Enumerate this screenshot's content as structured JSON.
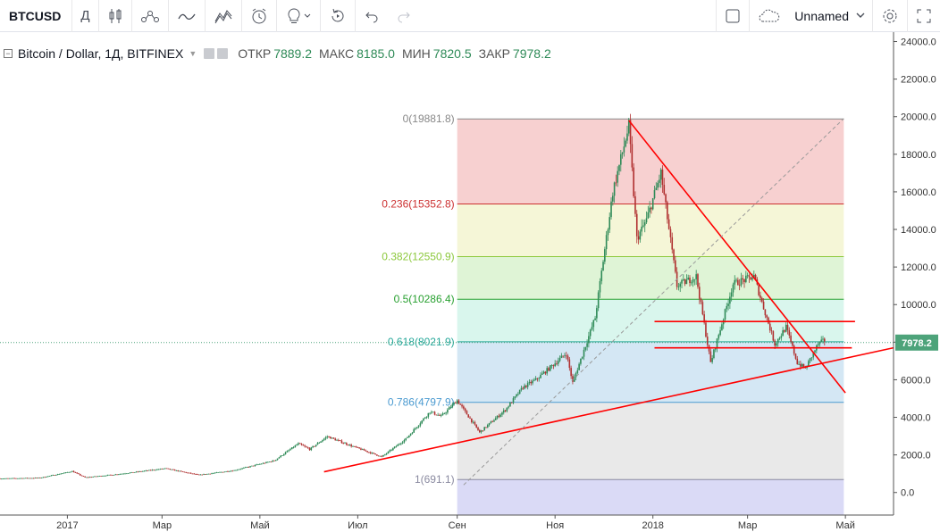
{
  "toolbar": {
    "symbol": "BTCUSD",
    "interval": "Д",
    "layout_name": "Unnamed",
    "icons": [
      "candles-icon",
      "indicators-icon",
      "compare-icon",
      "strategy-icon",
      "alert-icon",
      "idea-icon",
      "replay-icon",
      "undo-icon",
      "redo-icon",
      "fullscreen-icon",
      "cloud-icon",
      "settings-icon",
      "expand-icon"
    ]
  },
  "legend": {
    "title": "Bitcoin / Dollar, 1Д, BITFINEX",
    "open_label": "ОТКР",
    "open": "7889.2",
    "high_label": "МАКС",
    "high": "8185.0",
    "low_label": "МИН",
    "low": "7820.5",
    "close_label": "ЗАКР",
    "close": "7978.2"
  },
  "colors": {
    "up": "#2e8a57",
    "down": "#b03030",
    "trendline": "#ff0000",
    "price_tag": "#4da37a"
  },
  "chart_data": {
    "type": "candlestick",
    "ylim": [
      -1200,
      24500
    ],
    "y_ticks": [
      0,
      2000,
      4000,
      6000,
      8000,
      10000,
      12000,
      14000,
      16000,
      18000,
      20000,
      22000,
      24000
    ],
    "y_tick_labels": [
      "0.0",
      "2000.0",
      "4000.0",
      "6000.0",
      "8000.0",
      "10000.0",
      "12000.0",
      "14000.0",
      "16000.0",
      "18000.0",
      "20000.0",
      "22000.0",
      "24000.0"
    ],
    "xlim": [
      "2016-11-20",
      "2018-05-31"
    ],
    "x_ticks": [
      "2017-01-01",
      "2017-03-01",
      "2017-05-01",
      "2017-07-01",
      "2017-09-01",
      "2017-11-01",
      "2018-01-01",
      "2018-03-01",
      "2018-05-01"
    ],
    "x_tick_labels": [
      "2017",
      "Мар",
      "Май",
      "Июл",
      "Сен",
      "Ноя",
      "2018",
      "Мар",
      "Май"
    ],
    "price_path": [
      [
        "2016-11-20",
        740
      ],
      [
        "2016-12-15",
        780
      ],
      [
        "2017-01-04",
        1130
      ],
      [
        "2017-01-12",
        800
      ],
      [
        "2017-02-01",
        970
      ],
      [
        "2017-03-03",
        1280
      ],
      [
        "2017-03-24",
        930
      ],
      [
        "2017-04-15",
        1180
      ],
      [
        "2017-05-10",
        1700
      ],
      [
        "2017-05-25",
        2600
      ],
      [
        "2017-06-01",
        2300
      ],
      [
        "2017-06-12",
        2980
      ],
      [
        "2017-06-28",
        2450
      ],
      [
        "2017-07-16",
        1900
      ],
      [
        "2017-07-31",
        2850
      ],
      [
        "2017-08-15",
        4300
      ],
      [
        "2017-08-22",
        4050
      ],
      [
        "2017-09-01",
        4900
      ],
      [
        "2017-09-15",
        3200
      ],
      [
        "2017-10-01",
        4400
      ],
      [
        "2017-10-12",
        5600
      ],
      [
        "2017-10-20",
        6000
      ],
      [
        "2017-11-08",
        7400
      ],
      [
        "2017-11-12",
        5850
      ],
      [
        "2017-11-26",
        9300
      ],
      [
        "2017-12-07",
        16000
      ],
      [
        "2017-12-17",
        19500
      ],
      [
        "2017-12-22",
        13500
      ],
      [
        "2017-12-28",
        14500
      ],
      [
        "2018-01-06",
        17000
      ],
      [
        "2018-01-16",
        11000
      ],
      [
        "2018-01-28",
        11500
      ],
      [
        "2018-02-06",
        6900
      ],
      [
        "2018-02-20",
        11100
      ],
      [
        "2018-03-05",
        11500
      ],
      [
        "2018-03-18",
        7900
      ],
      [
        "2018-03-25",
        8800
      ],
      [
        "2018-04-01",
        6900
      ],
      [
        "2018-04-06",
        6600
      ],
      [
        "2018-04-14",
        7900
      ],
      [
        "2018-04-18",
        8100
      ]
    ],
    "current_price": 7978.2,
    "current_price_label": "7978.2",
    "fibonacci": {
      "x_range": [
        "2017-09-01",
        "2018-04-30"
      ],
      "levels": [
        {
          "ratio_label": "0(19881.8)",
          "price": 19881.8,
          "line": "#888888",
          "fill": "rgba(230,110,110,0.32)",
          "text": "#888888"
        },
        {
          "ratio_label": "0.236(15352.8)",
          "price": 15352.8,
          "line": "#cc3030",
          "fill": "rgba(225,230,140,0.35)",
          "text": "#cc3030"
        },
        {
          "ratio_label": "0.382(12550.9)",
          "price": 12550.9,
          "line": "#8cc83c",
          "fill": "rgba(150,220,120,0.30)",
          "text": "#8cc83c"
        },
        {
          "ratio_label": "0.5(10286.4)",
          "price": 10286.4,
          "line": "#28a030",
          "fill": "rgba(130,225,195,0.30)",
          "text": "#28a030"
        },
        {
          "ratio_label": "0.618(8021.9)",
          "price": 8021.9,
          "line": "#27a89a",
          "fill": "rgba(120,180,220,0.32)",
          "text": "#27a89a"
        },
        {
          "ratio_label": "0.786(4797.9)",
          "price": 4797.9,
          "line": "#4a9ad0",
          "fill": "rgba(175,175,175,0.28)",
          "text": "#4a9ad0"
        },
        {
          "ratio_label": "1(691.1)",
          "price": 691.1,
          "line": "#8a8aa0",
          "fill": "rgba(150,150,230,0.35)",
          "text": "#8a8aa0"
        }
      ]
    },
    "trendlines": [
      {
        "from": [
          "2017-12-17",
          19800
        ],
        "to": [
          "2018-05-01",
          5300
        ],
        "color": "#ff0000"
      },
      {
        "from": [
          "2017-06-10",
          1100
        ],
        "to": [
          "2018-05-31",
          7700
        ],
        "color": "#ff0000"
      },
      {
        "from": [
          "2018-01-02",
          9100
        ],
        "to": [
          "2018-05-07",
          9100
        ],
        "color": "#ff0000"
      },
      {
        "from": [
          "2018-01-02",
          7700
        ],
        "to": [
          "2018-05-05",
          7700
        ],
        "color": "#ff0000"
      },
      {
        "from": [
          "2017-09-05",
          400
        ],
        "to": [
          "2018-04-30",
          19900
        ],
        "color": "#999999",
        "dashed": true
      }
    ]
  }
}
